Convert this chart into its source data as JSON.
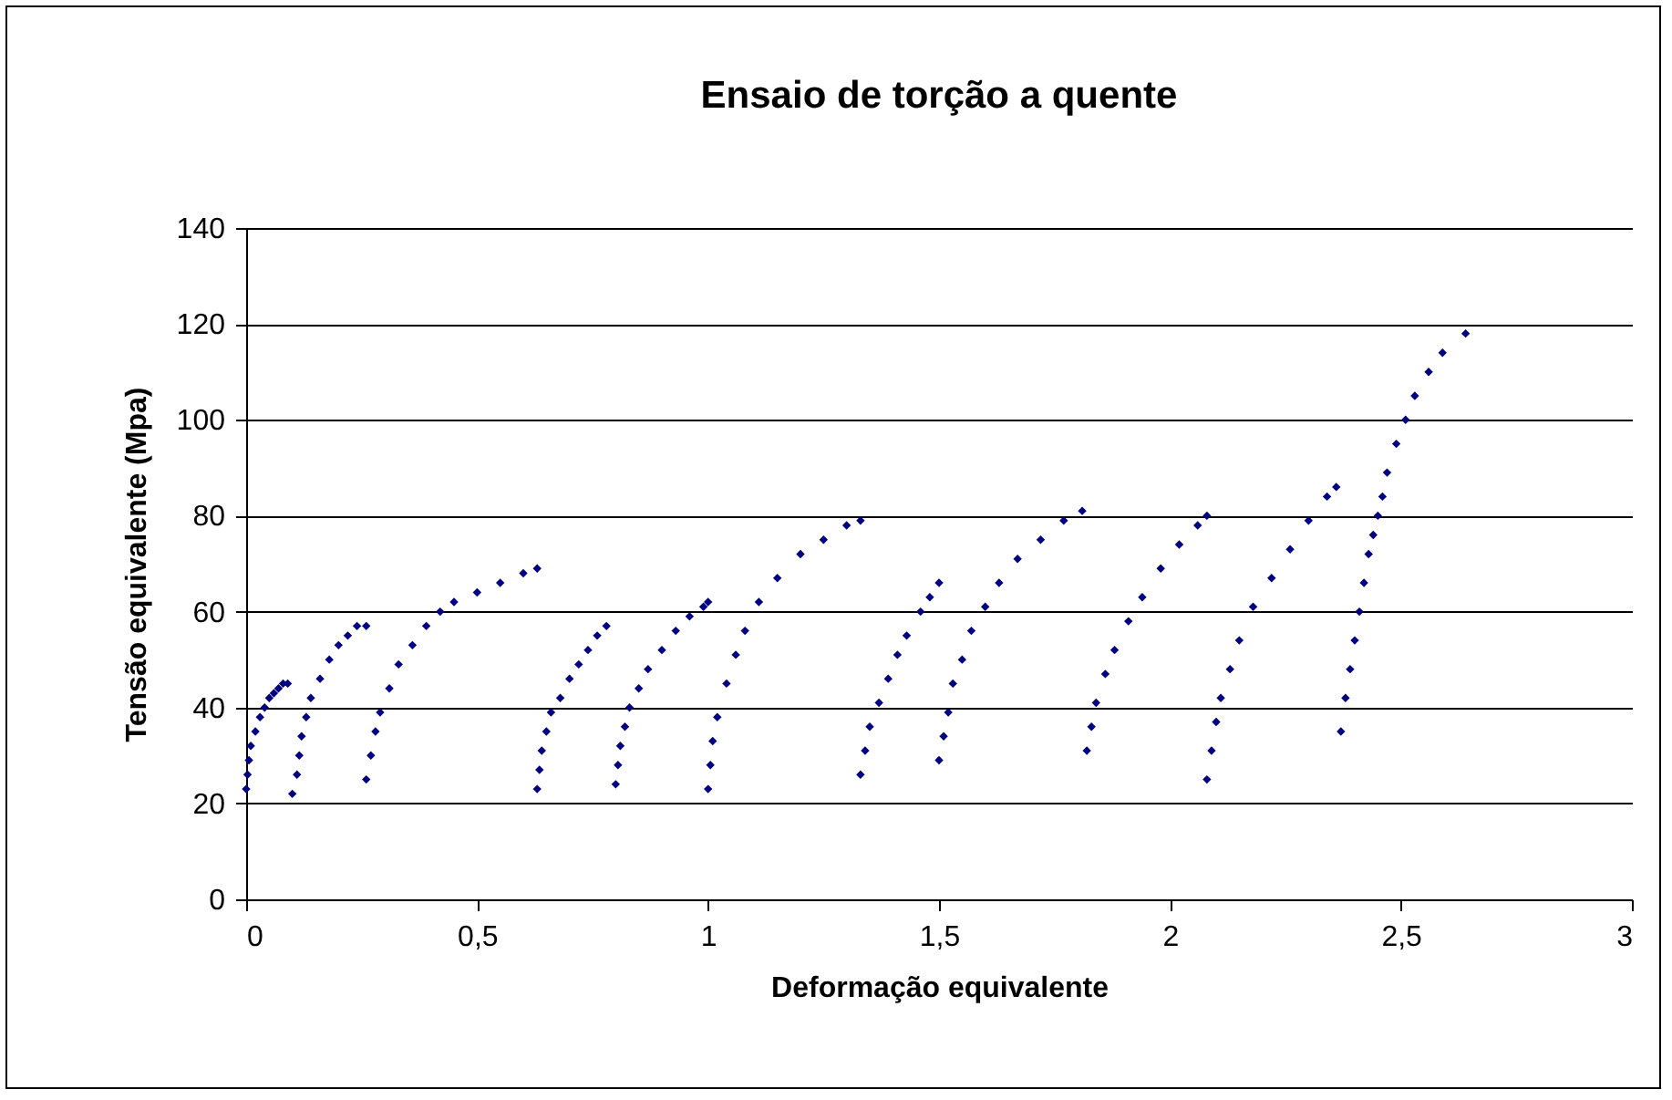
{
  "chart_data": {
    "type": "scatter",
    "title": "Ensaio de torção a quente",
    "xlabel": "Deformação equivalente",
    "ylabel": "Tensão equivalente (Mpa)",
    "xlim": [
      0,
      3
    ],
    "xticks": [
      {
        "value": 0,
        "label": "0"
      },
      {
        "value": 0.5,
        "label": "0,5"
      },
      {
        "value": 1,
        "label": "1"
      },
      {
        "value": 1.5,
        "label": "1,5"
      },
      {
        "value": 2,
        "label": "2"
      },
      {
        "value": 2.5,
        "label": "2,5"
      },
      {
        "value": 3,
        "label": "3"
      }
    ],
    "ylim": [
      0,
      140
    ],
    "yticks": [
      0,
      20,
      40,
      60,
      80,
      100,
      120,
      140
    ],
    "grid": "y",
    "marker": "diamond",
    "series": [
      {
        "color": "#000080",
        "x": [
          0,
          0.003,
          0.006,
          0.01,
          0.02,
          0.03,
          0.04,
          0.05,
          0.06,
          0.07,
          0.08,
          0.09,
          0.1,
          0.11,
          0.115,
          0.12,
          0.13,
          0.14,
          0.16,
          0.18,
          0.2,
          0.22,
          0.24,
          0.26,
          0.26,
          0.27,
          0.28,
          0.29,
          0.31,
          0.33,
          0.36,
          0.39,
          0.42,
          0.45,
          0.5,
          0.55,
          0.6,
          0.63,
          0.63,
          0.635,
          0.64,
          0.65,
          0.66,
          0.68,
          0.7,
          0.72,
          0.74,
          0.76,
          0.78,
          0.8,
          0.805,
          0.81,
          0.82,
          0.83,
          0.85,
          0.87,
          0.9,
          0.93,
          0.96,
          0.99,
          1.0,
          1.0,
          1.005,
          1.01,
          1.02,
          1.04,
          1.06,
          1.08,
          1.11,
          1.15,
          1.2,
          1.25,
          1.3,
          1.33,
          1.33,
          1.34,
          1.35,
          1.37,
          1.39,
          1.41,
          1.43,
          1.46,
          1.48,
          1.5,
          1.5,
          1.51,
          1.52,
          1.53,
          1.55,
          1.57,
          1.6,
          1.63,
          1.67,
          1.72,
          1.77,
          1.81,
          1.82,
          1.83,
          1.84,
          1.86,
          1.88,
          1.91,
          1.94,
          1.98,
          2.02,
          2.06,
          2.08,
          2.08,
          2.09,
          2.1,
          2.11,
          2.13,
          2.15,
          2.18,
          2.22,
          2.26,
          2.3,
          2.34,
          2.36,
          2.37,
          2.38,
          2.39,
          2.4,
          2.41,
          2.42,
          2.43,
          2.44,
          2.45,
          2.46,
          2.47,
          2.49,
          2.51,
          2.53,
          2.56,
          2.59,
          2.64
        ],
        "values": [
          23,
          26,
          29,
          32,
          35,
          38,
          40,
          42,
          43,
          44,
          45,
          45,
          22,
          26,
          30,
          34,
          38,
          42,
          46,
          50,
          53,
          55,
          57,
          57,
          25,
          30,
          35,
          39,
          44,
          49,
          53,
          57,
          60,
          62,
          64,
          66,
          68,
          69,
          23,
          27,
          31,
          35,
          39,
          42,
          46,
          49,
          52,
          55,
          57,
          24,
          28,
          32,
          36,
          40,
          44,
          48,
          52,
          56,
          59,
          61,
          62,
          23,
          28,
          33,
          38,
          45,
          51,
          56,
          62,
          67,
          72,
          75,
          78,
          79,
          26,
          31,
          36,
          41,
          46,
          51,
          55,
          60,
          63,
          66,
          29,
          34,
          39,
          45,
          50,
          56,
          61,
          66,
          71,
          75,
          79,
          81,
          31,
          36,
          41,
          47,
          52,
          58,
          63,
          69,
          74,
          78,
          80,
          25,
          31,
          37,
          42,
          48,
          54,
          61,
          67,
          73,
          79,
          84,
          86,
          35,
          42,
          48,
          54,
          60,
          66,
          72,
          76,
          80,
          84,
          89,
          95,
          100,
          105,
          110,
          114,
          118
        ]
      }
    ]
  }
}
